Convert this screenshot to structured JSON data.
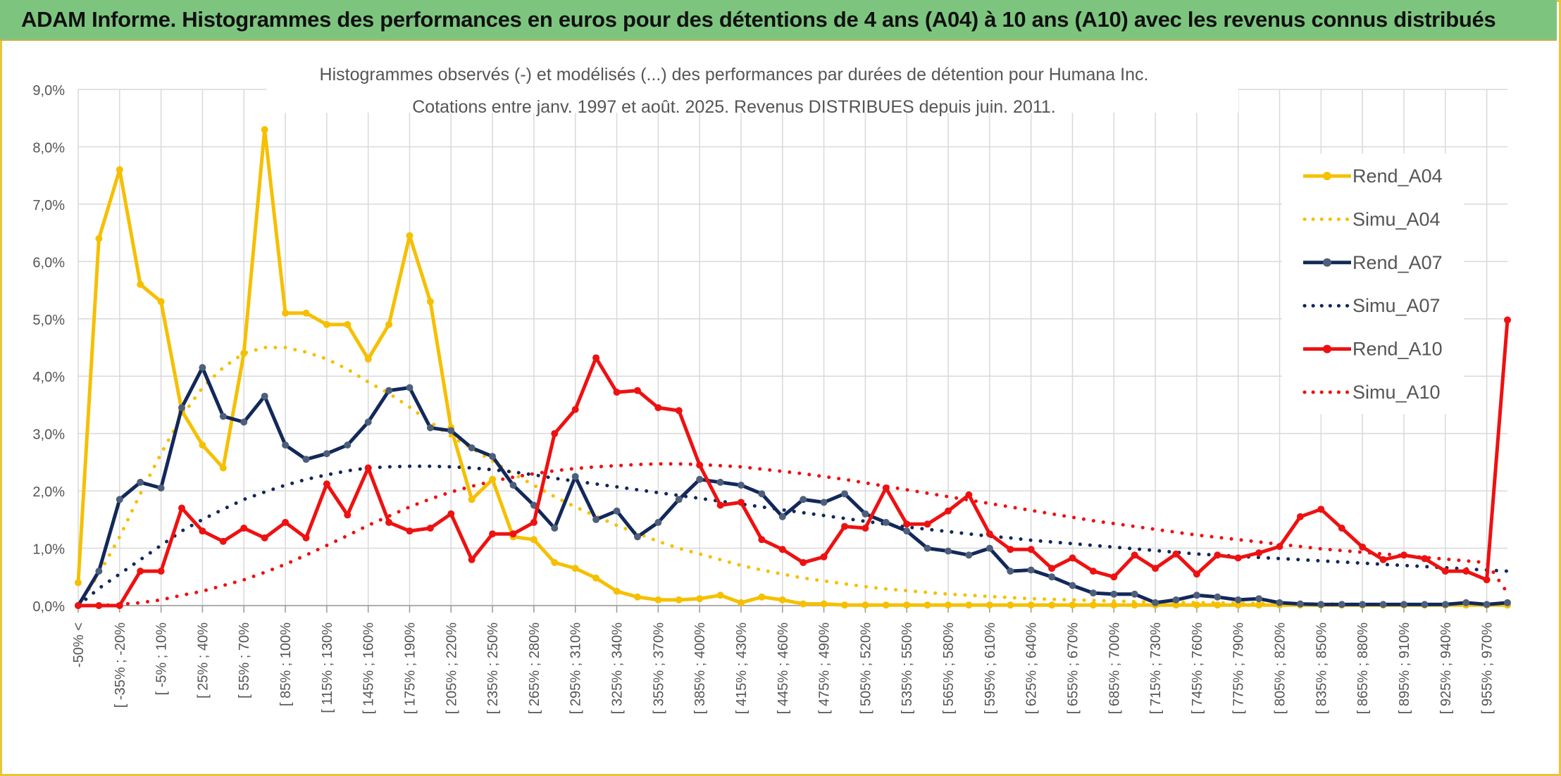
{
  "header": {
    "title": "ADAM Informe. Histogrammes des performances en euros pour des détentions de 4 ans (A04) à 10 ans (A10) avec les revenus connus distribués"
  },
  "chart_data": {
    "type": "line",
    "title": "Histogrammes observés (-) et modélisés (...) des performances par durées de détention pour Humana Inc.",
    "subtitle": "Cotations entre janv. 1997 et août. 2025. Revenus DISTRIBUES depuis juin. 2011.",
    "xlabel": "",
    "ylabel": "",
    "ylim": [
      0,
      9
    ],
    "y_ticks": [
      "0,0%",
      "1,0%",
      "2,0%",
      "3,0%",
      "4,0%",
      "5,0%",
      "6,0%",
      "7,0%",
      "8,0%",
      "9,0%"
    ],
    "grid": true,
    "legend_position": "right",
    "tick_labels": [
      "-50% <",
      "[ -35% ; -20%",
      "[ -5% ; 10%",
      "[ 25% ; 40%",
      "[ 55% ; 70%",
      "[ 85% ; 100%",
      "[ 115% ; 130%",
      "[ 145% ; 160%",
      "[ 175% ; 190%",
      "[ 205% ; 220%",
      "[ 235% ; 250%",
      "[ 265% ; 280%",
      "[ 295% ; 310%",
      "[ 325% ; 340%",
      "[ 355% ; 370%",
      "[ 385% ; 400%",
      "[ 415% ; 430%",
      "[ 445% ; 460%",
      "[ 475% ; 490%",
      "[ 505% ; 520%",
      "[ 535% ; 550%",
      "[ 565% ; 580%",
      "[ 595% ; 610%",
      "[ 625% ; 640%",
      "[ 655% ; 670%",
      "[ 685% ; 700%",
      "[ 715% ; 730%",
      "[ 745% ; 760%",
      "[ 775% ; 790%",
      "[ 805% ; 820%",
      "[ 835% ; 850%",
      "[ 865% ; 880%",
      "[ 895% ; 910%",
      "[ 925% ; 940%",
      "[ 955% ; 970%"
    ],
    "series": [
      {
        "name": "Rend_A04",
        "style": "solid",
        "color": "#f5c000",
        "values": [
          0.4,
          6.4,
          7.6,
          5.6,
          5.3,
          3.4,
          2.8,
          2.4,
          4.4,
          8.3,
          5.1,
          5.1,
          4.9,
          4.9,
          4.3,
          4.9,
          6.45,
          5.3,
          3.1,
          1.85,
          2.2,
          1.2,
          1.15,
          0.75,
          0.65,
          0.48,
          0.25,
          0.15,
          0.1,
          0.1,
          0.12,
          0.18,
          0.05,
          0.15,
          0.1,
          0.03,
          0.03,
          0.01,
          0.01,
          0.01,
          0.01,
          0.01,
          0.01,
          0.01,
          0.01,
          0.01,
          0.01,
          0.01,
          0.01,
          0.01,
          0.01,
          0.01,
          0.01,
          0.01,
          0.01,
          0.01,
          0.01,
          0.01,
          0.01,
          0.01,
          0.01,
          0.01,
          0.01,
          0.01,
          0.01,
          0.01,
          0.01,
          0.01,
          0.01,
          0.01
        ]
      },
      {
        "name": "Simu_A04",
        "style": "dotted",
        "color": "#f5c000",
        "values": [
          0.0,
          0.55,
          1.2,
          1.95,
          2.65,
          3.3,
          3.8,
          4.15,
          4.4,
          4.5,
          4.5,
          4.42,
          4.3,
          4.12,
          3.9,
          3.7,
          3.46,
          3.2,
          2.95,
          2.74,
          2.52,
          2.3,
          2.1,
          1.9,
          1.72,
          1.56,
          1.4,
          1.26,
          1.12,
          1.0,
          0.9,
          0.8,
          0.7,
          0.62,
          0.55,
          0.48,
          0.43,
          0.38,
          0.33,
          0.29,
          0.26,
          0.23,
          0.2,
          0.18,
          0.16,
          0.14,
          0.12,
          0.11,
          0.1,
          0.09,
          0.08,
          0.07,
          0.06,
          0.06,
          0.05,
          0.05,
          0.04,
          0.04,
          0.03,
          0.03,
          0.03,
          0.03,
          0.02,
          0.02,
          0.02,
          0.02,
          0.02,
          0.02,
          0.02,
          0.02
        ]
      },
      {
        "name": "Rend_A07",
        "style": "solid",
        "color": "#13285a",
        "values": [
          0.0,
          0.6,
          1.85,
          2.15,
          2.05,
          3.45,
          4.15,
          3.3,
          3.2,
          3.65,
          2.8,
          2.55,
          2.65,
          2.8,
          3.2,
          3.75,
          3.8,
          3.1,
          3.05,
          2.75,
          2.6,
          2.1,
          1.75,
          1.35,
          2.25,
          1.5,
          1.65,
          1.2,
          1.45,
          1.85,
          2.2,
          2.15,
          2.1,
          1.95,
          1.55,
          1.85,
          1.8,
          1.95,
          1.6,
          1.45,
          1.3,
          1.0,
          0.95,
          0.88,
          1.0,
          0.6,
          0.62,
          0.5,
          0.35,
          0.22,
          0.2,
          0.2,
          0.05,
          0.1,
          0.18,
          0.15,
          0.1,
          0.12,
          0.05,
          0.03,
          0.02,
          0.02,
          0.02,
          0.02,
          0.02,
          0.02,
          0.02,
          0.05,
          0.02,
          0.05
        ]
      },
      {
        "name": "Simu_A07",
        "style": "dotted",
        "color": "#13285a",
        "values": [
          0.0,
          0.3,
          0.55,
          0.8,
          1.05,
          1.3,
          1.5,
          1.68,
          1.85,
          1.98,
          2.1,
          2.2,
          2.28,
          2.35,
          2.4,
          2.42,
          2.43,
          2.43,
          2.42,
          2.4,
          2.37,
          2.33,
          2.28,
          2.22,
          2.17,
          2.12,
          2.07,
          2.02,
          1.97,
          1.92,
          1.87,
          1.82,
          1.77,
          1.72,
          1.67,
          1.62,
          1.57,
          1.52,
          1.47,
          1.42,
          1.37,
          1.33,
          1.29,
          1.25,
          1.21,
          1.18,
          1.14,
          1.11,
          1.08,
          1.05,
          1.02,
          0.99,
          0.96,
          0.93,
          0.9,
          0.88,
          0.86,
          0.84,
          0.82,
          0.8,
          0.78,
          0.76,
          0.74,
          0.72,
          0.7,
          0.68,
          0.66,
          0.64,
          0.62,
          0.6
        ]
      },
      {
        "name": "Rend_A10",
        "style": "solid",
        "color": "#ee1111",
        "values": [
          0.0,
          0.0,
          0.0,
          0.6,
          0.6,
          1.7,
          1.3,
          1.12,
          1.35,
          1.18,
          1.45,
          1.18,
          2.12,
          1.58,
          2.4,
          1.45,
          1.3,
          1.35,
          1.6,
          0.8,
          1.25,
          1.25,
          1.45,
          3.0,
          3.42,
          4.32,
          3.72,
          3.75,
          3.45,
          3.4,
          2.45,
          1.75,
          1.8,
          1.15,
          0.98,
          0.75,
          0.85,
          1.38,
          1.35,
          2.05,
          1.42,
          1.42,
          1.65,
          1.93,
          1.25,
          0.98,
          0.98,
          0.65,
          0.83,
          0.6,
          0.5,
          0.88,
          0.65,
          0.9,
          0.55,
          0.88,
          0.83,
          0.92,
          1.03,
          1.55,
          1.68,
          1.35,
          1.02,
          0.8,
          0.88,
          0.82,
          0.6,
          0.6,
          0.45,
          4.98
        ]
      },
      {
        "name": "Simu_A10",
        "style": "dotted",
        "color": "#ee1111",
        "values": [
          0.0,
          0.0,
          0.02,
          0.05,
          0.1,
          0.18,
          0.25,
          0.35,
          0.45,
          0.58,
          0.72,
          0.88,
          1.05,
          1.22,
          1.4,
          1.56,
          1.72,
          1.86,
          1.98,
          2.08,
          2.17,
          2.24,
          2.3,
          2.35,
          2.39,
          2.42,
          2.44,
          2.46,
          2.47,
          2.47,
          2.46,
          2.44,
          2.42,
          2.38,
          2.34,
          2.3,
          2.25,
          2.2,
          2.14,
          2.08,
          2.02,
          1.96,
          1.9,
          1.84,
          1.78,
          1.72,
          1.66,
          1.6,
          1.54,
          1.48,
          1.43,
          1.38,
          1.33,
          1.28,
          1.23,
          1.19,
          1.15,
          1.11,
          1.07,
          1.03,
          0.99,
          0.96,
          0.93,
          0.9,
          0.87,
          0.84,
          0.81,
          0.78,
          0.75,
          0.22
        ]
      }
    ]
  }
}
